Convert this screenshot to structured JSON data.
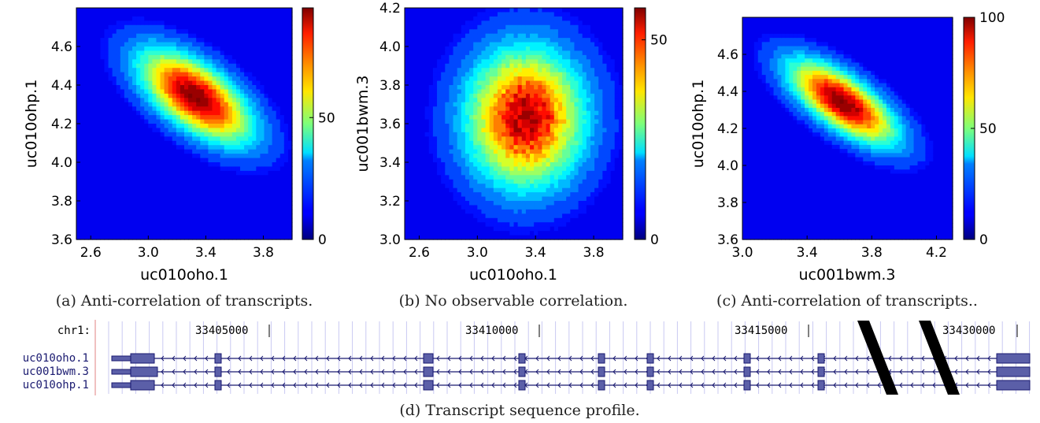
{
  "chart_data": [
    {
      "type": "heatmap",
      "caption": "(a) Anti-correlation of transcripts.",
      "xlabel": "uc010oho.1",
      "ylabel": "uc010ohp.1",
      "xlim": [
        2.5,
        4.0
      ],
      "ylim": [
        3.6,
        4.8
      ],
      "xticks": [
        "2.6",
        "3.0",
        "3.4",
        "3.8"
      ],
      "xtick_values": [
        2.6,
        3.0,
        3.4,
        3.8
      ],
      "yticks": [
        "3.6",
        "3.8",
        "4.0",
        "4.2",
        "4.4",
        "4.6"
      ],
      "ytick_values": [
        3.6,
        3.8,
        4.0,
        4.2,
        4.4,
        4.6
      ],
      "colorbar_ticks": [
        "0",
        "50"
      ],
      "colorbar_tick_values": [
        0,
        50
      ],
      "colorbar_range": [
        0,
        95
      ],
      "peak": {
        "x": 3.37,
        "y": 4.36,
        "value": 95
      },
      "density": {
        "cx": 3.33,
        "cy": 4.34,
        "sx": 0.26,
        "sy": 0.16,
        "rho": -0.62
      }
    },
    {
      "type": "heatmap",
      "caption": "(b) No observable correlation.",
      "xlabel": "uc010oho.1",
      "ylabel": "uc001bwm.3",
      "xlim": [
        2.5,
        4.0
      ],
      "ylim": [
        3.0,
        4.2
      ],
      "xticks": [
        "2.6",
        "3.0",
        "3.4",
        "3.8"
      ],
      "xtick_values": [
        2.6,
        3.0,
        3.4,
        3.8
      ],
      "yticks": [
        "3.0",
        "3.2",
        "3.4",
        "3.6",
        "3.8",
        "4.0",
        "4.2"
      ],
      "ytick_values": [
        3.0,
        3.2,
        3.4,
        3.6,
        3.8,
        4.0,
        4.2
      ],
      "colorbar_ticks": [
        "0",
        "50"
      ],
      "colorbar_tick_values": [
        0,
        50
      ],
      "colorbar_range": [
        0,
        58
      ],
      "peak": {
        "x": 3.35,
        "y": 3.66,
        "value": 55
      },
      "density": {
        "cx": 3.33,
        "cy": 3.63,
        "sx": 0.27,
        "sy": 0.24,
        "rho": 0.0
      }
    },
    {
      "type": "heatmap",
      "caption": "(c) Anti-correlation of transcripts..",
      "xlabel": "uc001bwm.3",
      "ylabel": "uc010ohp.1",
      "xlim": [
        3.0,
        4.3
      ],
      "ylim": [
        3.6,
        4.8
      ],
      "xticks": [
        "3.0",
        "3.4",
        "3.8",
        "4.2"
      ],
      "xtick_values": [
        3.0,
        3.4,
        3.8,
        4.2
      ],
      "yticks": [
        "3.6",
        "3.8",
        "4.0",
        "4.2",
        "4.4",
        "4.6"
      ],
      "ytick_values": [
        3.6,
        3.8,
        4.0,
        4.2,
        4.4,
        4.6
      ],
      "colorbar_ticks": [
        "0",
        "50",
        "100"
      ],
      "colorbar_tick_values": [
        0,
        50,
        100
      ],
      "colorbar_range": [
        0,
        100
      ],
      "peak": {
        "x": 3.62,
        "y": 4.36,
        "value": 100
      },
      "density": {
        "cx": 3.62,
        "cy": 4.34,
        "sx": 0.22,
        "sy": 0.15,
        "rho": -0.7
      }
    },
    {
      "type": "gene_track",
      "caption": "(d) Transcript sequence profile.",
      "chrom_label": "chr1:",
      "positions": [
        "33405000",
        "33410000",
        "33415000",
        "33430000"
      ],
      "transcripts": [
        "uc010oho.1",
        "uc001bwm.3",
        "uc010ohp.1"
      ],
      "exons_count": 9,
      "colors": {
        "exon": "#5b5fa8",
        "exon_border": "#1a1a70",
        "grid": "#c9c9f2",
        "gap_mark": "#000000"
      }
    }
  ],
  "colormap": "jet"
}
